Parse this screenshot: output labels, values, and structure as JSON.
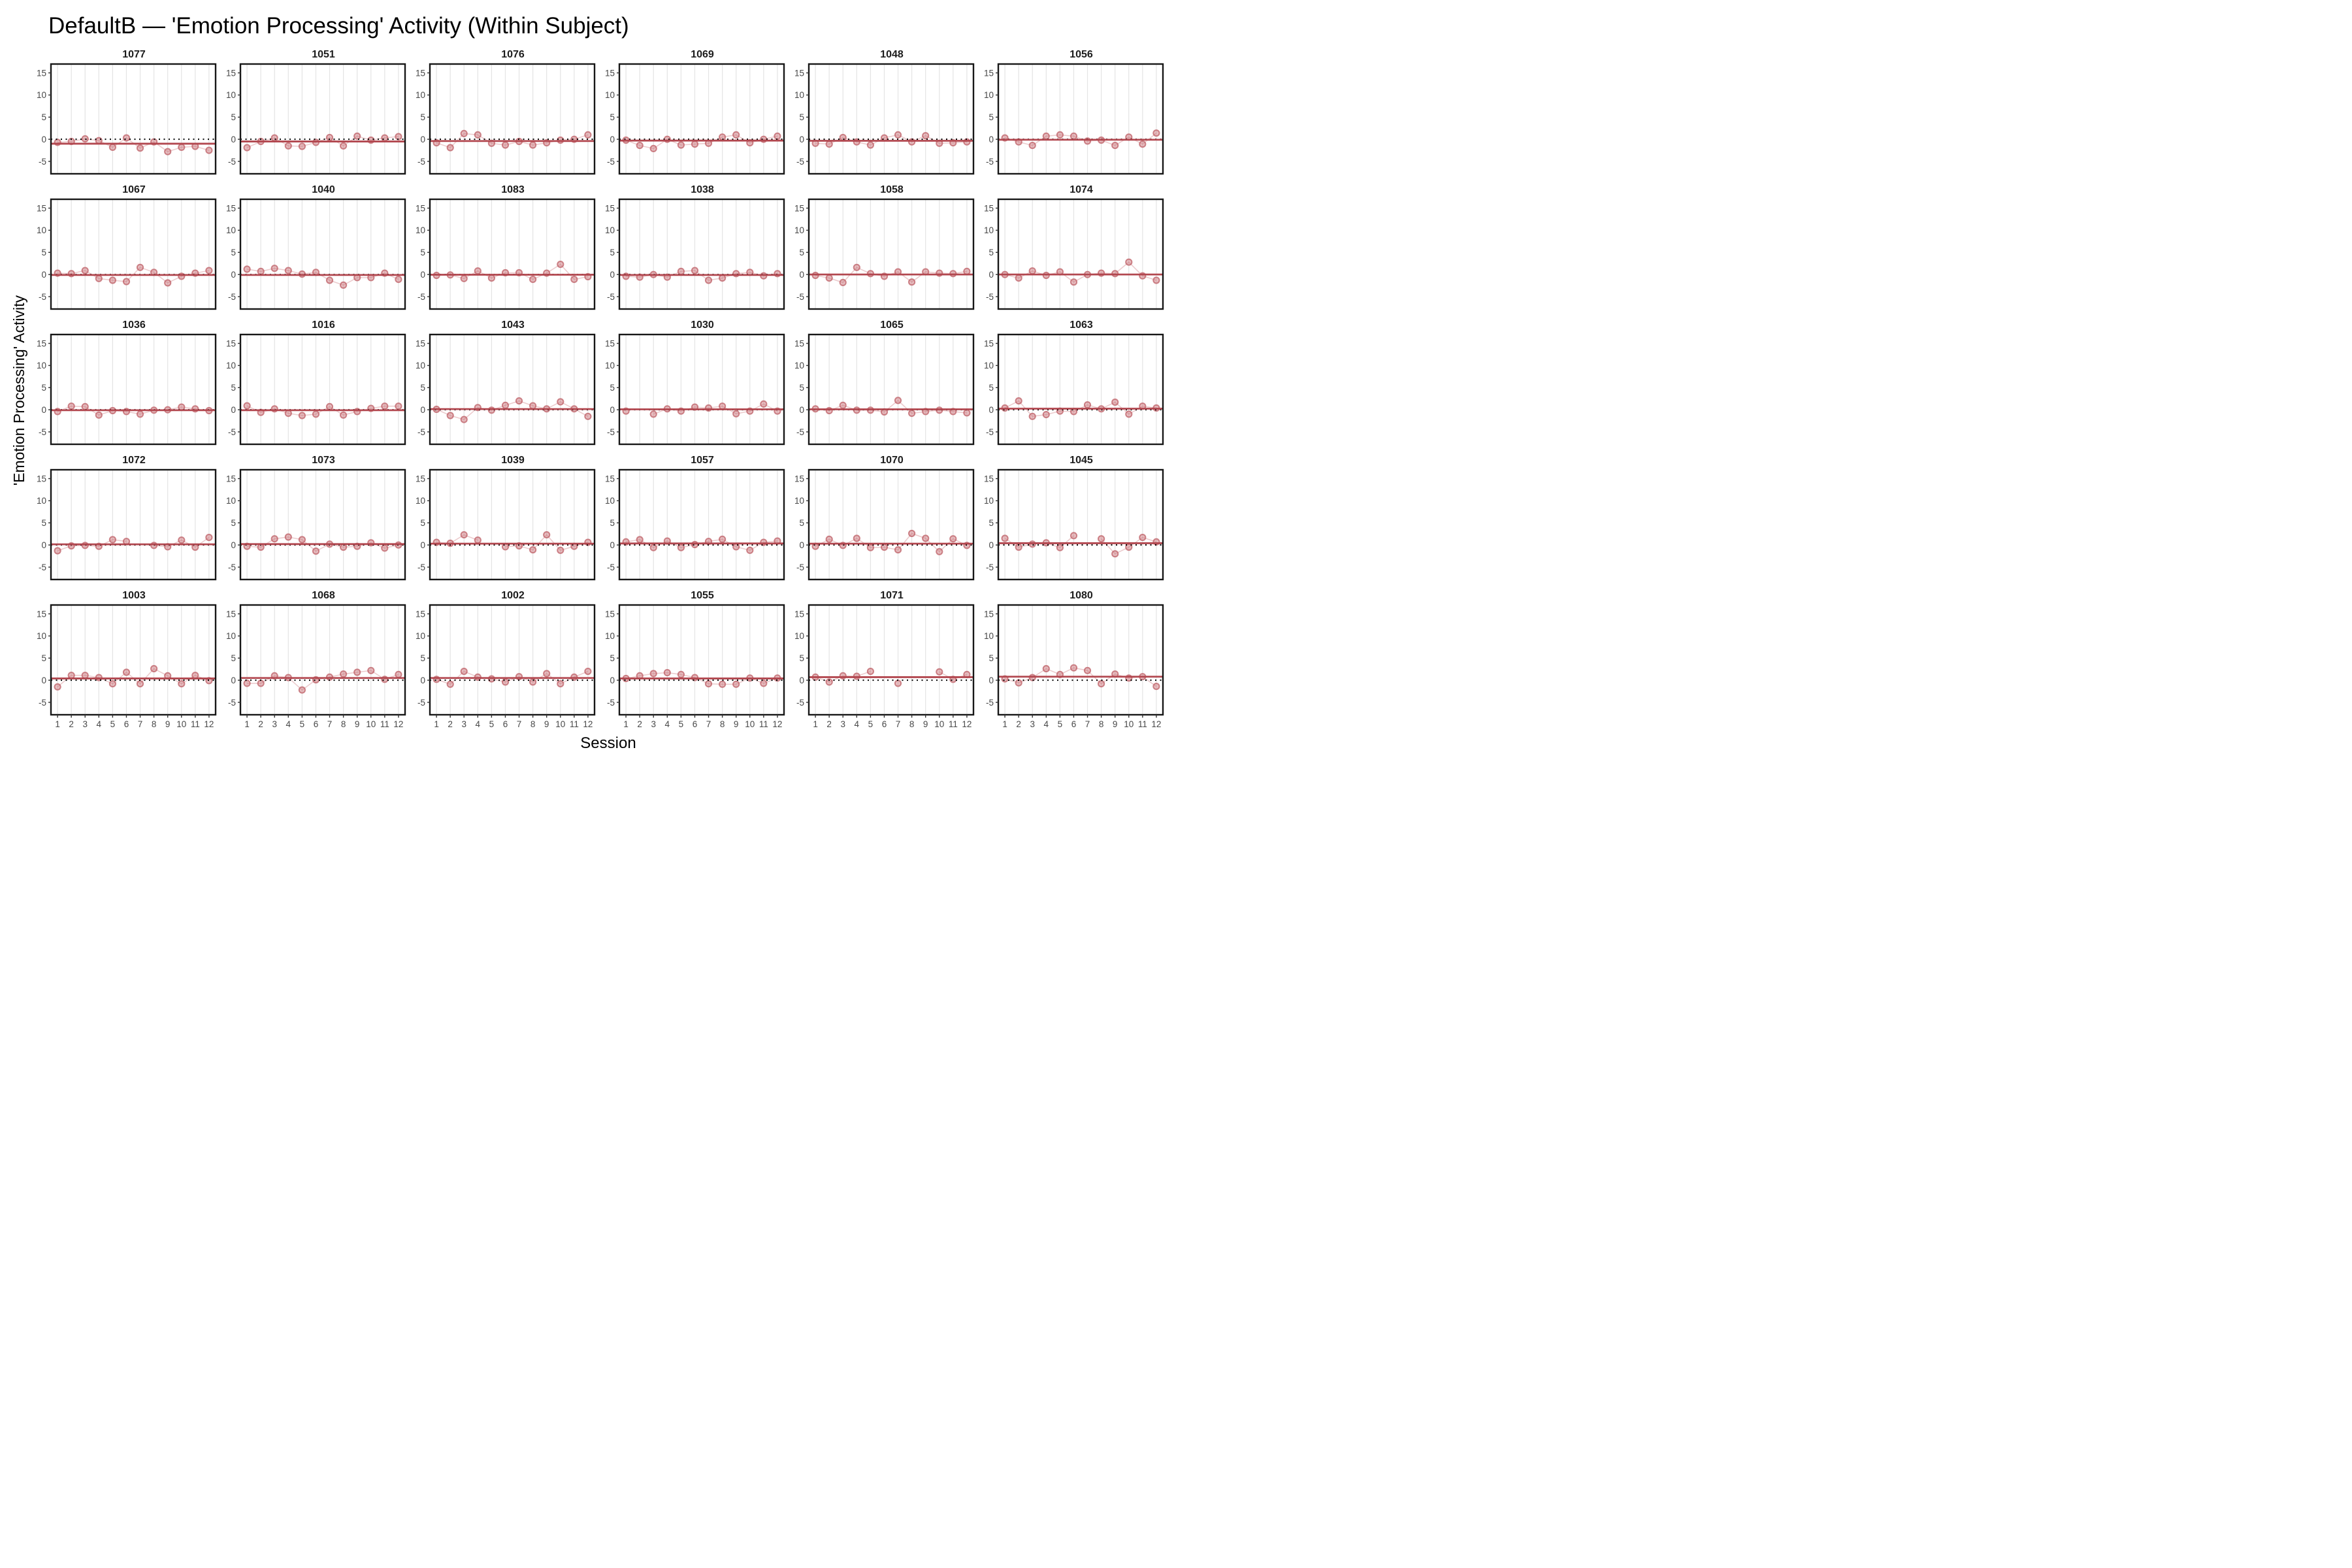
{
  "title": "DefaultB — 'Emotion Processing' Activity (Within Subject)",
  "x_axis_label": "Session",
  "y_axis_label": "'Emotion Processing' Activity",
  "chart_data": {
    "type": "scatter",
    "x": [
      1,
      2,
      3,
      4,
      5,
      6,
      7,
      8,
      9,
      10,
      11,
      12
    ],
    "x_tick_labels": [
      "1",
      "2",
      "3",
      "4",
      "5",
      "6",
      "7",
      "8",
      "9",
      "10",
      "11",
      "12"
    ],
    "y_ticks": [
      15,
      10,
      5,
      0,
      -5
    ],
    "ylim": [
      -7.8,
      17
    ],
    "grid": "vertical-only",
    "legend": "none",
    "reference_line_y": 0,
    "facet_layout": {
      "rows": 5,
      "cols": 6
    },
    "facets": [
      {
        "subject": "1077",
        "trend": -1.0,
        "values": [
          -0.7,
          -0.5,
          0.1,
          -0.3,
          -1.8,
          0.3,
          -2.0,
          -0.6,
          -2.8,
          -1.8,
          -1.6,
          -2.5
        ]
      },
      {
        "subject": "1051",
        "trend": -0.5,
        "values": [
          -1.9,
          -0.5,
          0.3,
          -1.5,
          -1.6,
          -0.7,
          0.4,
          -1.5,
          0.7,
          -0.2,
          0.3,
          0.6
        ]
      },
      {
        "subject": "1076",
        "trend": -0.4,
        "values": [
          -0.8,
          -1.9,
          1.3,
          1.0,
          -0.9,
          -1.3,
          -0.5,
          -1.3,
          -0.8,
          -0.2,
          0.0,
          1.0
        ]
      },
      {
        "subject": "1069",
        "trend": -0.3,
        "values": [
          -0.2,
          -1.4,
          -2.1,
          0.0,
          -1.3,
          -1.1,
          -0.9,
          0.5,
          1.0,
          -0.8,
          0.0,
          0.7
        ]
      },
      {
        "subject": "1048",
        "trend": -0.35,
        "values": [
          -0.9,
          -1.1,
          0.4,
          -0.6,
          -1.3,
          0.3,
          1.0,
          -0.6,
          0.8,
          -0.9,
          -0.8,
          -0.6
        ]
      },
      {
        "subject": "1056",
        "trend": -0.1,
        "values": [
          0.3,
          -0.6,
          -1.4,
          0.7,
          1.0,
          0.7,
          -0.4,
          -0.2,
          -1.4,
          0.5,
          -1.1,
          1.4
        ]
      },
      {
        "subject": "1067",
        "trend": -0.1,
        "values": [
          0.3,
          0.2,
          0.9,
          -0.9,
          -1.3,
          -1.6,
          1.6,
          0.5,
          -1.9,
          -0.4,
          0.3,
          0.9
        ]
      },
      {
        "subject": "1040",
        "trend": -0.1,
        "values": [
          1.2,
          0.7,
          1.4,
          0.9,
          0.1,
          0.5,
          -1.3,
          -2.4,
          -0.7,
          -0.7,
          0.3,
          -1.1
        ]
      },
      {
        "subject": "1083",
        "trend": -0.05,
        "values": [
          -0.2,
          -0.1,
          -0.9,
          0.8,
          -0.8,
          0.4,
          0.4,
          -1.1,
          0.3,
          2.3,
          -1.1,
          -0.5
        ]
      },
      {
        "subject": "1038",
        "trend": -0.1,
        "values": [
          -0.4,
          -0.6,
          0.0,
          -0.6,
          0.7,
          0.9,
          -1.3,
          -0.8,
          0.2,
          0.5,
          -0.3,
          0.2
        ]
      },
      {
        "subject": "1058",
        "trend": 0.0,
        "values": [
          -0.2,
          -0.8,
          -1.8,
          1.6,
          0.2,
          -0.4,
          0.6,
          -1.7,
          0.6,
          0.3,
          0.2,
          0.7
        ]
      },
      {
        "subject": "1074",
        "trend": 0.0,
        "values": [
          0.0,
          -0.8,
          0.8,
          -0.2,
          0.6,
          -1.7,
          0.0,
          0.3,
          0.2,
          2.8,
          -0.3,
          -1.3
        ]
      },
      {
        "subject": "1036",
        "trend": -0.1,
        "values": [
          -0.4,
          0.8,
          0.7,
          -1.2,
          -0.2,
          -0.4,
          -1.0,
          -0.1,
          0.0,
          0.6,
          0.2,
          -0.2
        ]
      },
      {
        "subject": "1016",
        "trend": -0.1,
        "values": [
          0.9,
          -0.6,
          0.2,
          -0.8,
          -1.3,
          -1.0,
          0.7,
          -1.2,
          -0.4,
          0.3,
          0.8,
          0.8
        ]
      },
      {
        "subject": "1043",
        "trend": 0.15,
        "values": [
          0.1,
          -1.3,
          -2.2,
          0.5,
          -0.1,
          1.0,
          2.0,
          0.9,
          0.2,
          1.8,
          0.2,
          -1.5
        ]
      },
      {
        "subject": "1030",
        "trend": 0.1,
        "values": [
          -0.3,
          null,
          -1.0,
          0.2,
          -0.3,
          0.6,
          0.4,
          0.8,
          -0.9,
          -0.3,
          1.3,
          -0.3
        ]
      },
      {
        "subject": "1065",
        "trend": 0.1,
        "values": [
          0.2,
          -0.2,
          1.0,
          -0.1,
          -0.1,
          -0.5,
          2.1,
          -0.8,
          -0.4,
          -0.1,
          -0.4,
          -0.7
        ]
      },
      {
        "subject": "1063",
        "trend": 0.25,
        "values": [
          0.4,
          2.0,
          -1.5,
          -1.1,
          -0.3,
          -0.4,
          1.1,
          0.2,
          1.7,
          -1.0,
          0.8,
          0.4
        ]
      },
      {
        "subject": "1072",
        "trend": 0.15,
        "values": [
          -1.3,
          -0.2,
          -0.1,
          -0.3,
          1.2,
          0.8,
          null,
          -0.1,
          -0.4,
          1.1,
          -0.5,
          1.7
        ]
      },
      {
        "subject": "1073",
        "trend": 0.2,
        "values": [
          -0.3,
          -0.5,
          1.4,
          1.8,
          1.2,
          -1.4,
          0.2,
          -0.5,
          -0.3,
          0.5,
          -0.7,
          0.0
        ]
      },
      {
        "subject": "1039",
        "trend": 0.3,
        "values": [
          0.6,
          0.4,
          2.3,
          1.1,
          null,
          -0.4,
          -0.2,
          -1.1,
          2.3,
          -1.2,
          -0.3,
          0.6
        ]
      },
      {
        "subject": "1057",
        "trend": 0.35,
        "values": [
          0.7,
          1.2,
          -0.6,
          0.9,
          -0.6,
          0.1,
          0.8,
          1.3,
          -0.4,
          -1.2,
          0.6,
          0.9
        ]
      },
      {
        "subject": "1070",
        "trend": 0.3,
        "values": [
          -0.3,
          1.3,
          -0.1,
          1.5,
          -0.6,
          -0.5,
          -1.1,
          2.6,
          1.5,
          -1.5,
          1.4,
          -0.1
        ]
      },
      {
        "subject": "1045",
        "trend": 0.4,
        "values": [
          1.5,
          -0.5,
          0.2,
          0.5,
          -0.6,
          2.1,
          null,
          1.4,
          -2.0,
          -0.5,
          1.7,
          0.7
        ]
      },
      {
        "subject": "1003",
        "trend": 0.4,
        "values": [
          -1.5,
          1.1,
          1.1,
          0.6,
          -0.8,
          1.8,
          -0.8,
          2.6,
          1.0,
          -0.8,
          1.1,
          -0.1
        ]
      },
      {
        "subject": "1068",
        "trend": 0.5,
        "values": [
          -0.7,
          -0.7,
          1.0,
          0.6,
          -2.2,
          0.1,
          0.7,
          1.4,
          1.8,
          2.2,
          0.2,
          1.3
        ]
      },
      {
        "subject": "1002",
        "trend": 0.5,
        "values": [
          0.2,
          -0.9,
          2.0,
          0.7,
          0.3,
          -0.4,
          0.8,
          -0.4,
          1.5,
          -0.8,
          0.7,
          2.0
        ]
      },
      {
        "subject": "1055",
        "trend": 0.4,
        "values": [
          0.4,
          1.0,
          1.5,
          1.7,
          1.3,
          0.6,
          -0.8,
          -0.9,
          -0.9,
          0.5,
          -0.7,
          0.5
        ]
      },
      {
        "subject": "1071",
        "trend": 0.7,
        "values": [
          0.7,
          -0.4,
          1.0,
          0.9,
          2.0,
          null,
          -0.7,
          null,
          null,
          1.9,
          0.2,
          1.3
        ]
      },
      {
        "subject": "1080",
        "trend": 0.8,
        "values": [
          0.3,
          -0.6,
          0.6,
          2.6,
          1.3,
          2.8,
          2.2,
          -0.8,
          1.4,
          0.5,
          0.8,
          -1.4
        ]
      }
    ],
    "colors": {
      "trend_line": "#b2474f",
      "point_stroke": "#bd5f66",
      "point_fill": "#c96c73",
      "point_fill_opacity": 0.45,
      "connector_line": "#c96c73",
      "connector_opacity": 0.35,
      "zero_line": "#000000",
      "gridline": "#e4e4e4",
      "panel_border": "#171717",
      "tick_text": "#474747",
      "facet_title_text": "#1c1c1c"
    }
  }
}
